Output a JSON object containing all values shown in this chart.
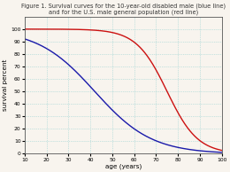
{
  "title_line1": "Figure 1. Survival curves for the 10-year-old disabled male (blue line)",
  "title_line2": "and for the U.S. male general population (red line)",
  "xlabel": "age (years)",
  "ylabel": "survival percent",
  "xlim": [
    10,
    100
  ],
  "ylim": [
    0,
    110
  ],
  "xticks": [
    10,
    20,
    30,
    40,
    50,
    60,
    70,
    80,
    90,
    100
  ],
  "yticks": [
    0,
    10,
    20,
    30,
    40,
    50,
    60,
    70,
    80,
    90,
    100
  ],
  "blue_color": "#1a1aaa",
  "red_color": "#cc1111",
  "bg_color": "#f8f4ee",
  "grid_color": "#88cccc",
  "title_fontsize": 4.8,
  "axis_label_fontsize": 5.2,
  "tick_fontsize": 4.3
}
